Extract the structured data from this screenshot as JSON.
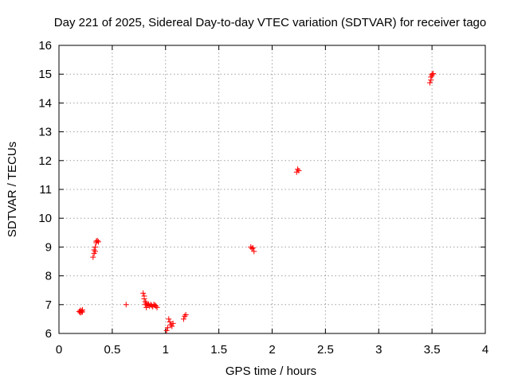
{
  "chart_data": {
    "type": "scatter",
    "title": "Day 221 of 2025, Sidereal Day-to-day VTEC variation (SDTVAR) for receiver tago",
    "xlabel": "GPS time / hours",
    "ylabel": "SDTVAR / TECUs",
    "xlim": [
      0,
      4
    ],
    "ylim": [
      6,
      16
    ],
    "xticks": [
      0,
      0.5,
      1,
      1.5,
      2,
      2.5,
      3,
      3.5,
      4
    ],
    "xtick_labels": [
      "0",
      "0.5",
      "1",
      "1.5",
      "2",
      "2.5",
      "3",
      "3.5",
      "4"
    ],
    "yticks": [
      6,
      7,
      8,
      9,
      10,
      11,
      12,
      13,
      14,
      15,
      16
    ],
    "ytick_labels": [
      "6",
      "7",
      "8",
      "9",
      "10",
      "11",
      "12",
      "13",
      "14",
      "15",
      "16"
    ],
    "grid": true,
    "marker": "+",
    "color": "#ff0000",
    "series": [
      {
        "name": "SDTVAR",
        "x": [
          0.19,
          0.2,
          0.2,
          0.21,
          0.21,
          0.22,
          0.22,
          0.32,
          0.33,
          0.33,
          0.34,
          0.34,
          0.35,
          0.35,
          0.36,
          0.37,
          0.63,
          0.79,
          0.8,
          0.8,
          0.81,
          0.81,
          0.82,
          0.82,
          0.83,
          0.84,
          0.85,
          0.86,
          0.87,
          0.88,
          0.89,
          0.9,
          0.91,
          0.92,
          1.01,
          1.02,
          1.03,
          1.04,
          1.05,
          1.06,
          1.07,
          1.17,
          1.18,
          1.19,
          1.8,
          1.81,
          1.82,
          1.83,
          2.23,
          2.24,
          2.25,
          3.48,
          3.49,
          3.49,
          3.5,
          3.5,
          3.51
        ],
        "y": [
          6.76,
          6.8,
          6.72,
          6.78,
          6.74,
          6.82,
          6.75,
          8.65,
          8.78,
          8.9,
          8.85,
          9.0,
          9.15,
          9.2,
          9.22,
          9.18,
          7.0,
          7.4,
          7.3,
          7.2,
          7.1,
          7.0,
          6.9,
          7.05,
          6.98,
          7.02,
          6.95,
          7.0,
          6.97,
          6.93,
          7.0,
          6.98,
          6.95,
          6.9,
          6.1,
          6.2,
          6.5,
          6.4,
          6.3,
          6.25,
          6.35,
          6.5,
          6.6,
          6.65,
          9.0,
          8.95,
          8.97,
          8.85,
          11.6,
          11.7,
          11.65,
          14.7,
          14.8,
          14.9,
          14.95,
          15.0,
          15.02
        ]
      }
    ]
  }
}
